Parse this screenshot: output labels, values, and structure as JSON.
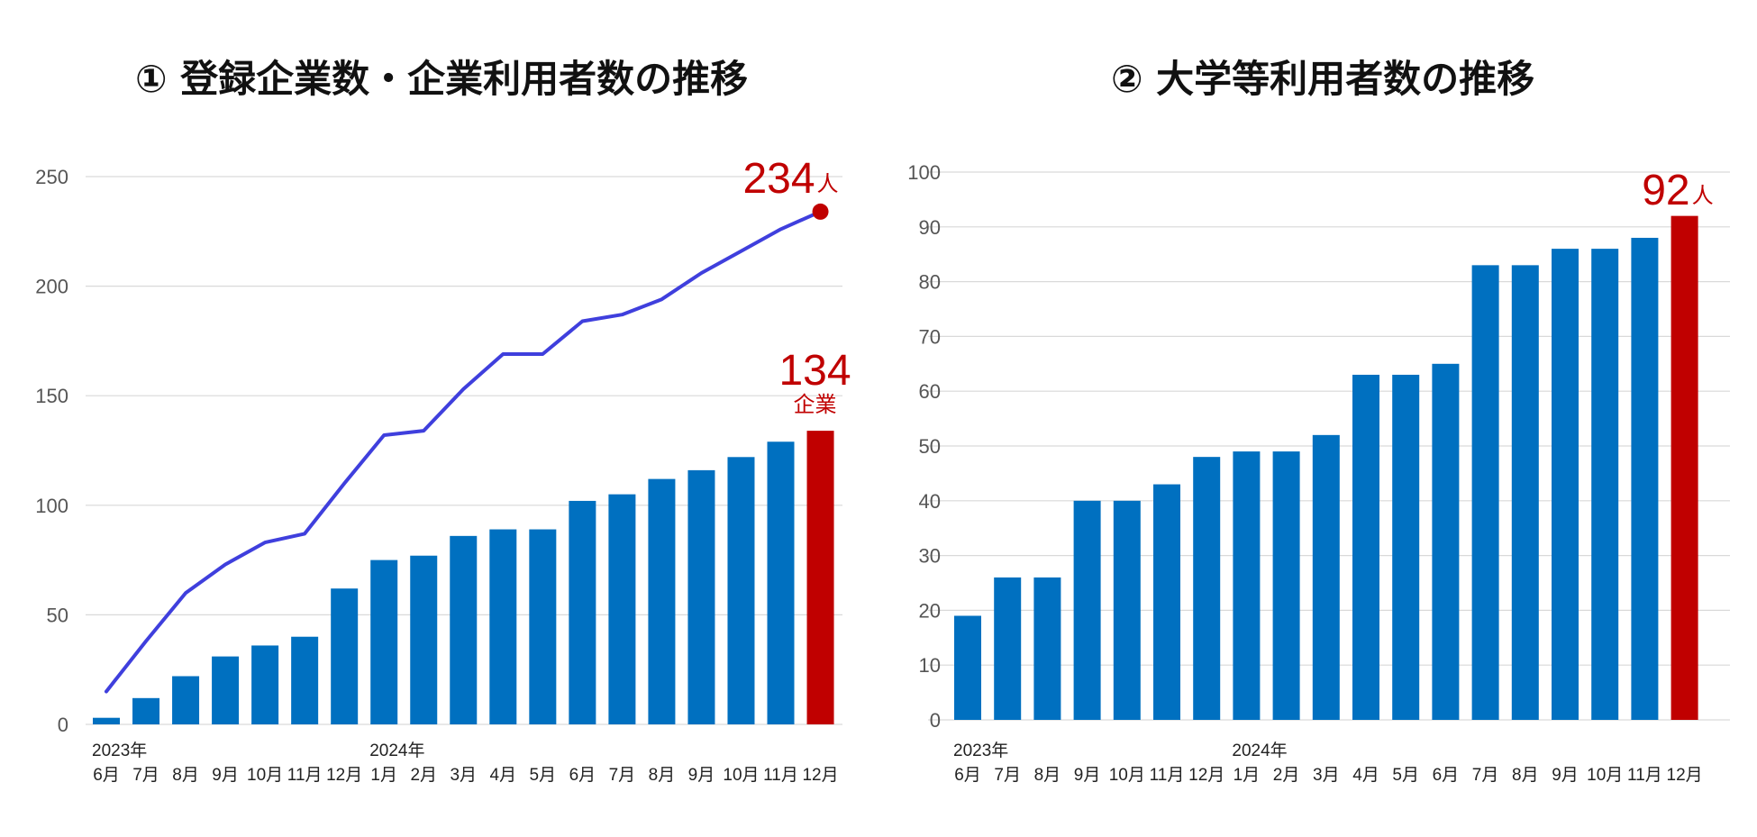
{
  "chart_data": [
    {
      "type": "bar+line",
      "title": "① 登録企業数・企業利用者数の推移",
      "ylim": [
        0,
        250
      ],
      "yticks": [
        0,
        50,
        100,
        150,
        200,
        250
      ],
      "grid": true,
      "year_labels": [
        {
          "index": 0,
          "label": "2023年"
        },
        {
          "index": 7,
          "label": "2024年"
        }
      ],
      "categories": [
        "6月",
        "7月",
        "8月",
        "9月",
        "10月",
        "11月",
        "12月",
        "1月",
        "2月",
        "3月",
        "4月",
        "5月",
        "6月",
        "7月",
        "8月",
        "9月",
        "10月",
        "11月",
        "12月"
      ],
      "series": [
        {
          "name": "登録企業数",
          "kind": "bar",
          "color": "#0070c0",
          "highlight_color": "#c00000",
          "values": [
            3,
            12,
            22,
            31,
            36,
            40,
            62,
            75,
            77,
            86,
            89,
            89,
            102,
            105,
            112,
            116,
            122,
            129,
            134
          ]
        },
        {
          "name": "企業利用者数",
          "kind": "line",
          "color": "#3f3fdd",
          "marker_color": "#c00000",
          "values": [
            15,
            38,
            60,
            73,
            83,
            87,
            110,
            132,
            134,
            153,
            169,
            169,
            184,
            187,
            194,
            206,
            216,
            226,
            234
          ]
        }
      ],
      "callouts": [
        {
          "value": "234",
          "unit": "人",
          "color": "#c00000"
        },
        {
          "value": "134",
          "unit": "企業",
          "color": "#c00000"
        }
      ]
    },
    {
      "type": "bar",
      "title": "② 大学等利用者数の推移",
      "ylim": [
        0,
        100
      ],
      "yticks": [
        0,
        10,
        20,
        30,
        40,
        50,
        60,
        70,
        80,
        90,
        100
      ],
      "grid": true,
      "year_labels": [
        {
          "index": 0,
          "label": "2023年"
        },
        {
          "index": 7,
          "label": "2024年"
        }
      ],
      "categories": [
        "6月",
        "7月",
        "8月",
        "9月",
        "10月",
        "11月",
        "12月",
        "1月",
        "2月",
        "3月",
        "4月",
        "5月",
        "6月",
        "7月",
        "8月",
        "9月",
        "10月",
        "11月",
        "12月"
      ],
      "series": [
        {
          "name": "大学等利用者数",
          "kind": "bar",
          "color": "#0070c0",
          "highlight_color": "#c00000",
          "values": [
            19,
            26,
            26,
            40,
            40,
            43,
            48,
            49,
            49,
            52,
            63,
            63,
            65,
            83,
            83,
            86,
            86,
            88,
            92
          ]
        }
      ],
      "callouts": [
        {
          "value": "92",
          "unit": "人",
          "color": "#c00000"
        }
      ]
    }
  ]
}
